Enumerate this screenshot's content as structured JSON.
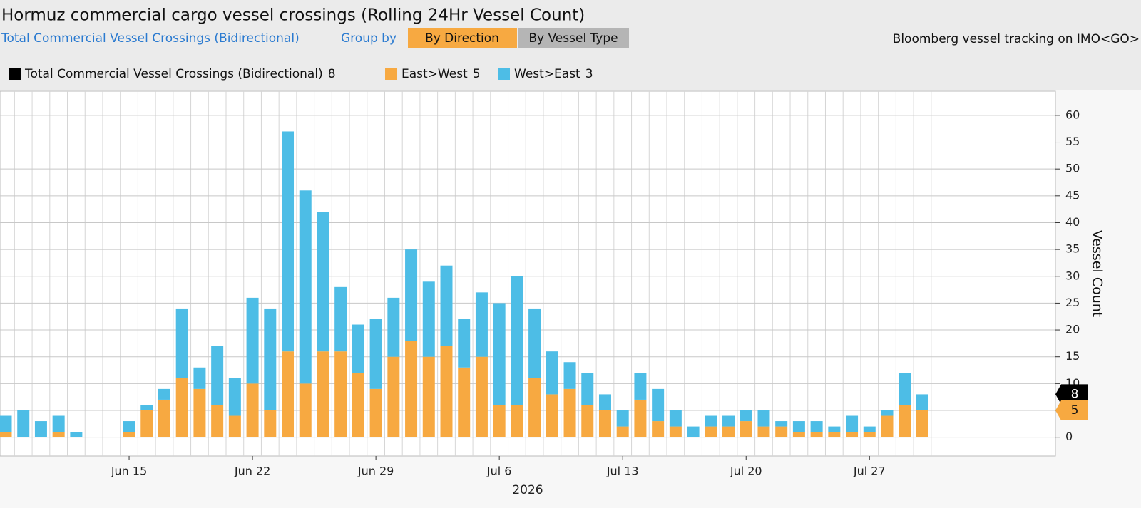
{
  "chart_data": {
    "type": "bar",
    "title": "Hormuz commercial cargo vessel crossings (Rolling 24Hr Vessel Count)",
    "subtitle": "Total Commercial Vessel Crossings (Bidirectional)",
    "group_by_label": "Group by",
    "buttons": [
      "By Direction",
      "By Vessel Type"
    ],
    "source": "Bloomberg vessel tracking on IMO<GO>",
    "y_label": "Vessel Count",
    "x_label": "2026",
    "categories": [
      null,
      null,
      null,
      null,
      null,
      null,
      null,
      "Jun 15",
      null,
      null,
      null,
      null,
      null,
      null,
      "Jun 22",
      null,
      null,
      null,
      null,
      null,
      null,
      "Jun 29",
      null,
      null,
      null,
      null,
      null,
      null,
      "Jul 6",
      null,
      null,
      null,
      null,
      null,
      null,
      "Jul 13",
      null,
      null,
      null,
      null,
      null,
      null,
      "Jul 20",
      null,
      null,
      null,
      null,
      null,
      null,
      "Jul 27",
      null,
      null,
      null
    ],
    "series": [
      {
        "name": "Total Commercial Vessel Crossings (Bidirectional)",
        "color": "#000000",
        "kind": "line",
        "values": [
          4,
          5,
          3,
          4,
          1,
          0,
          0,
          3,
          6,
          9,
          24,
          13,
          17,
          11,
          26,
          24,
          57,
          46,
          42,
          28,
          21,
          22,
          26,
          35,
          29,
          32,
          22,
          27,
          25,
          30,
          24,
          16,
          14,
          12,
          8,
          5,
          12,
          9,
          5,
          2,
          4,
          4,
          5,
          5,
          3,
          3,
          3,
          2,
          4,
          2,
          5,
          12,
          8
        ]
      },
      {
        "name": "East>West",
        "color": "#f7a941",
        "kind": "stack",
        "values": [
          1,
          0,
          0,
          1,
          0,
          0,
          0,
          1,
          5,
          7,
          11,
          9,
          6,
          4,
          10,
          5,
          16,
          10,
          16,
          16,
          12,
          9,
          15,
          18,
          15,
          17,
          13,
          15,
          6,
          6,
          11,
          8,
          9,
          6,
          5,
          2,
          7,
          3,
          2,
          0,
          2,
          2,
          3,
          2,
          2,
          1,
          1,
          1,
          1,
          1,
          4,
          6,
          5
        ]
      },
      {
        "name": "West>East",
        "color": "#4dbde6",
        "kind": "stack",
        "values": [
          3,
          5,
          3,
          3,
          1,
          0,
          0,
          2,
          1,
          2,
          13,
          4,
          11,
          7,
          16,
          19,
          41,
          36,
          26,
          12,
          9,
          13,
          11,
          17,
          14,
          15,
          9,
          12,
          19,
          24,
          13,
          8,
          5,
          6,
          3,
          3,
          5,
          6,
          3,
          2,
          2,
          2,
          2,
          3,
          1,
          2,
          2,
          1,
          3,
          1,
          1,
          6,
          3
        ]
      }
    ],
    "ylim": [
      -3.5,
      64.5
    ],
    "yticks": [
      0,
      5,
      10,
      15,
      20,
      25,
      30,
      35,
      40,
      45,
      50,
      55,
      60
    ],
    "grid": true
  }
}
